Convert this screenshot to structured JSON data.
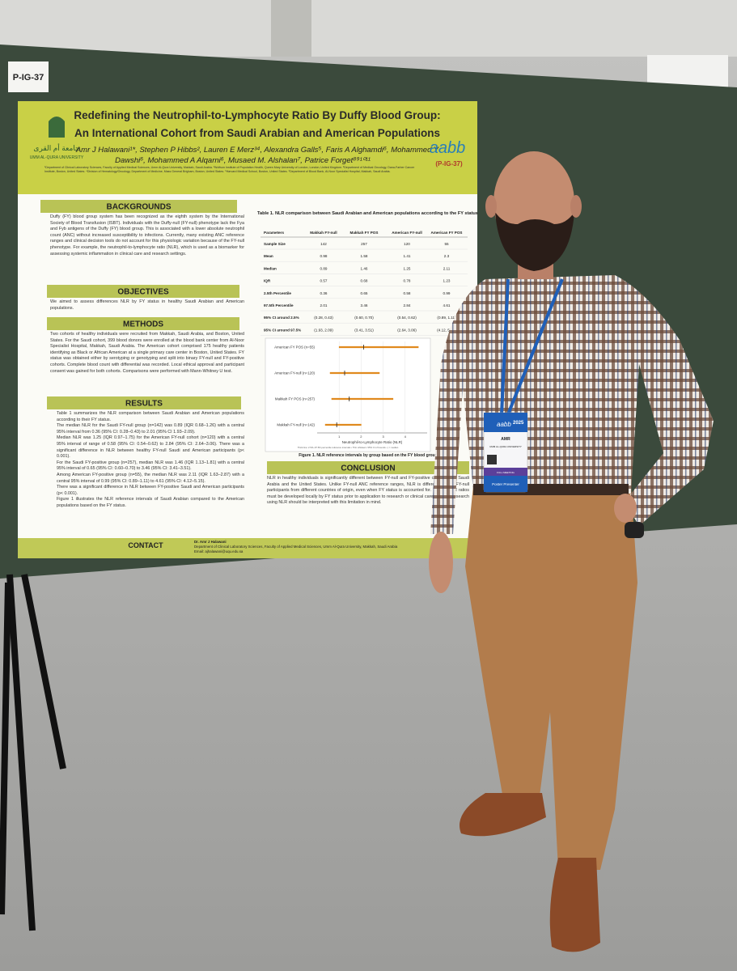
{
  "board_label": "P-IG-37",
  "poster": {
    "university": "UMM AL-QURA UNIVERSITY",
    "university_ar": "جامعة أم القرى",
    "title_lines": [
      "Redefining the Neutrophil-to-Lymphocyte Ratio By Duffy Blood Group:",
      "An International Cohort from Saudi Arabian and American Populations"
    ],
    "author_lines": [
      "Amr J Halawani¹*, Stephen P Hibbs², Lauren E Merz³⁴, Alexandra Galls⁵, Faris A Alghamdi⁶, Mohammed Y",
      "Dawshi⁶, Mohammed A Alqarni⁶, Musaed M. Alshalan⁷, Patrice Forget⁸⁹¹⁰¹¹"
    ],
    "affiliations": "¹Department of Clinical Laboratory Sciences, Faculty of Applied Medical Sciences, Umm Al-Qura University, Makkah, Saudi Arabia. ²Wolfson Institute of Population Health, Queen Mary University of London, London, United Kingdom. ³Department of Medical Oncology, Dana-Farber Cancer Institute, Boston, United States. ⁴Division of Hematology/Oncology, Department of Medicine, Mass General Brigham, Boston, United States. ⁵Harvard Medical School, Boston, United States. ⁶Department of Blood Bank, Al-Noor Specialist Hospital, Makkah, Saudi Arabia.",
    "society_logo": "aabb",
    "code": "(P-IG-37)",
    "backgrounds": {
      "heading": "BACKGROUNDS",
      "text": "Duffy (FY) blood group system has been recognized as the eighth system by the International Society of Blood Transfusion (ISBT). Individuals with the Duffy-null (FY-null) phenotype lack the Fya and Fyb antigens of the Duffy (FY) blood group. This is associated with a lower absolute neutrophil count (ANC) without increased susceptibility to infections. Currently, many existing ANC reference ranges and clinical decision tools do not account for this physiologic variation because of the FY-null phenotype. For example, the neutrophil-to-lymphocyte ratio (NLR), which is used as a biomarker for assessing systemic inflammation in clinical care and research settings."
    },
    "objectives": {
      "heading": "OBJECTIVES",
      "text": "We aimed to assess differences NLR by FY status in healthy Saudi Arabian and American populations."
    },
    "methods": {
      "heading": "METHODS",
      "text": "Two cohorts of healthy individuals were recruited from Makkah, Saudi Arabia, and Boston, United States. For the Saudi cohort, 399 blood donors were enrolled at the blood bank center from Al-Noor Specialist Hospital, Makkah, Saudi Arabia. The American cohort comprised 175 healthy patients identifying as Black or African American at a single primary care center in Boston, United States. FY status was obtained either by serotyping or genotyping and split into binary FY-null and FY-positive cohorts. Complete blood count with differential was recorded. Local ethical approval and participant consent was gained for both cohorts. Comparisons were performed with Mann-Whitney U test."
    },
    "results": {
      "heading": "RESULTS",
      "bullets": [
        "Table 1 summarizes the NLR comparison between Saudi Arabian and American populations according to their FY status.",
        "The median NLR for the Saudi FY-null group (n=142) was 0.89 (IQR 0.68–1.26) with a central 95% interval from 0.36 (95% CI: 0.28–0.43) to 2.01 (95% CI 1.93–2.09).",
        "Median NLR was 1.25 (IQR 0.97–1.75) for the American FY-null cohort (n=120) with a central 95% interval of range of 0.58 (95% CI: 0.54–0.62) to 2.84 (95% CI: 2.64–3.06). There was a significant difference in NLR between healthy FY-null Saudi and American participants (p< 0.001).",
        "For the Saudi FY-positive group (n=257), median NLR was 1.46 (IQR 1.13–1.81) with a central 95% interval of 0.65 (95% CI: 0.60–0.70) to 3.46 (95% CI: 3.41–3.51).",
        "Among American FY-positive group (n=55), the median NLR was 2.11 (IQR 1.63–2.87) with a central 95% interval of 0.99 (95% CI: 0.89–1.11) to 4.61 (95% CI: 4.12–5.15).",
        "There was a significant difference in NLR between FY-positive Saudi and American participants (p< 0.001).",
        "Figure 1 illustrates the NLR reference intervals of Saudi Arabian compared to the American populations based on the FY status."
      ]
    },
    "table": {
      "title": "Table 1. NLR comparison between Saudi Arabian and American populations according to the FY status",
      "header": [
        "Parameters",
        "Makkah FY-null",
        "Makkah FY POS",
        "American FY-null",
        "American FY POS"
      ],
      "rows": [
        {
          "label": "Sample Size",
          "cells": [
            142,
            257,
            120,
            55
          ]
        },
        {
          "label": "Mean",
          "cells": [
            0.98,
            1.58,
            1.41,
            2.3
          ]
        },
        {
          "label": "Median",
          "cells": [
            0.89,
            1.46,
            1.25,
            2.11
          ]
        },
        {
          "label": "IQR",
          "cells": [
            0.57,
            0.68,
            0.78,
            1.23
          ]
        },
        {
          "label": "2.5th Percentile",
          "cells": [
            0.36,
            0.65,
            0.58,
            0.99
          ]
        },
        {
          "label": "97.5th Percentile",
          "cells": [
            2.01,
            3.46,
            2.84,
            4.61
          ]
        },
        {
          "label": "95% CI around 2.5%",
          "cells": [
            "(0.28, 0.43)",
            "(0.60, 0.70)",
            "(0.54, 0.62)",
            "(0.89, 1.11)"
          ]
        },
        {
          "label": "95% CI around 97.5%",
          "cells": [
            "(1.93, 2.09)",
            "(3.41, 3.51)",
            "(2.64, 3.06)",
            "(4.12, 5.15)"
          ]
        }
      ]
    },
    "figure": {
      "groups": [
        "Makkah FY-null (n=142)",
        "Makkah FY POS (n=257)",
        "American FY-null (n=120)",
        "American FY POS (n=55)"
      ],
      "xlabel": "Neutrophil-to-Lymphocyte Ratio (NLR)",
      "xlim": [
        0,
        5
      ],
      "xticks": [
        1,
        2,
        3,
        4
      ],
      "color": "#e08a1e",
      "note": "Thick line: 2.5th–97.5th percentile reference intervals • Thin whiskers: 95% CI of bounds • | = median",
      "caption": "Figure 1. NLR reference intervals by group based on the FY blood group"
    },
    "conclusion": {
      "heading": "CONCLUSION",
      "text": "NLR in healthy individuals is significantly different between FY-null and FY-positive cohorts from Saudi Arabia and the United States. Unlike FY-null ANC reference ranges, NLR is different among FY-null participants from different countries of origin, even when FY status is accounted for. Normal NLR ratios must be developed locally by FY status prior to application to research or clinical care. Existing research using NLR should be interpreted with this limitation in mind."
    },
    "contact": {
      "heading": "CONTACT",
      "lines": [
        "Dr. Amr J Halawani",
        "Department of Clinical Laboratory Sciences, Faculty of Applied Medical Sciences, Umm Al-Qura University, Makkah, Saudi Arabia",
        "Email: ajhalawani@uqu.edu.sa"
      ]
    }
  },
  "badge": {
    "logo": "aabb",
    "year": "2025",
    "name": "AMR",
    "org": "UMM AL-QURA UNIVERSITY",
    "type": "FULL MEETING",
    "role": "Poster Presenter"
  }
}
